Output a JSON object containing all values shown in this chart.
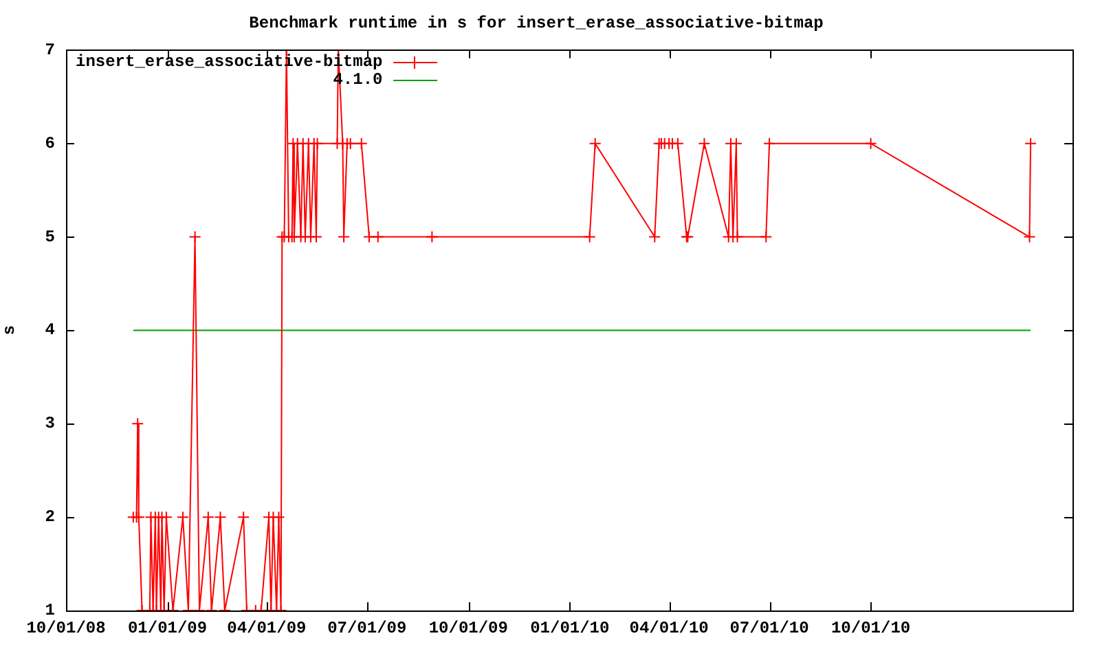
{
  "chart_data": {
    "type": "line",
    "title": "Benchmark runtime in s for insert_erase_associative-bitmap",
    "ylabel": "s",
    "xlim": [
      "2008-10-01",
      "2011-04-02"
    ],
    "xticks": [
      {
        "value": "2008-10-01",
        "label": "10/01/08"
      },
      {
        "value": "2009-01-01",
        "label": "01/01/09"
      },
      {
        "value": "2009-04-01",
        "label": "04/01/09"
      },
      {
        "value": "2009-07-01",
        "label": "07/01/09"
      },
      {
        "value": "2009-10-01",
        "label": "10/01/09"
      },
      {
        "value": "2010-01-01",
        "label": "01/01/10"
      },
      {
        "value": "2010-04-01",
        "label": "04/01/10"
      },
      {
        "value": "2010-07-01",
        "label": "07/01/10"
      },
      {
        "value": "2010-10-01",
        "label": "10/01/10"
      }
    ],
    "ylim": [
      1,
      7
    ],
    "yticks": [
      1,
      2,
      3,
      4,
      5,
      6,
      7
    ],
    "grid": false,
    "legend": "top left",
    "marker": "cross",
    "line_style": "solid",
    "series": [
      {
        "name": "insert_erase_associative-bitmap",
        "color": "#ff0000",
        "x": [
          "2008-12-01",
          "2008-12-04",
          "2008-12-05",
          "2008-12-06",
          "2008-12-09",
          "2008-12-16",
          "2008-12-17",
          "2008-12-19",
          "2008-12-21",
          "2008-12-22",
          "2008-12-24",
          "2008-12-26",
          "2008-12-27",
          "2008-12-29",
          "2008-12-31",
          "2009-01-06",
          "2009-01-15",
          "2009-01-20",
          "2009-01-26",
          "2009-01-30",
          "2009-02-07",
          "2009-02-10",
          "2009-02-18",
          "2009-02-22",
          "2009-03-11",
          "2009-03-14",
          "2009-03-22",
          "2009-03-27",
          "2009-04-03",
          "2009-04-05",
          "2009-04-07",
          "2009-04-10",
          "2009-04-12",
          "2009-04-14",
          "2009-04-15",
          "2009-04-17",
          "2009-04-19",
          "2009-04-21",
          "2009-04-24",
          "2009-04-25",
          "2009-04-26",
          "2009-04-29",
          "2009-05-02",
          "2009-05-04",
          "2009-05-06",
          "2009-05-09",
          "2009-05-11",
          "2009-05-14",
          "2009-05-16",
          "2009-05-17",
          "2009-06-04",
          "2009-06-05",
          "2009-06-09",
          "2009-06-10",
          "2009-06-13",
          "2009-06-16",
          "2009-06-26",
          "2009-07-03",
          "2009-07-11",
          "2009-08-29",
          "2010-01-19",
          "2010-01-24",
          "2010-03-19",
          "2010-03-23",
          "2010-03-25",
          "2010-03-28",
          "2010-04-01",
          "2010-04-04",
          "2010-04-09",
          "2010-04-17",
          "2010-04-18",
          "2010-05-03",
          "2010-05-25",
          "2010-05-27",
          "2010-05-29",
          "2010-06-01",
          "2010-06-02",
          "2010-06-28",
          "2010-07-01",
          "2010-10-01",
          "2011-02-22",
          "2011-02-23"
        ],
        "values": [
          2,
          2,
          3,
          2,
          1,
          1,
          2,
          1,
          2,
          1,
          2,
          1,
          2,
          1,
          2,
          1,
          2,
          1,
          5,
          1,
          2,
          1,
          2,
          1,
          2,
          1,
          1,
          1,
          2,
          1,
          2,
          1,
          2,
          1,
          5,
          5,
          7,
          5,
          5,
          6,
          5,
          6,
          5,
          6,
          5,
          6,
          5,
          6,
          5,
          6,
          6,
          7,
          6,
          5,
          6,
          6,
          6,
          5,
          5,
          5,
          5,
          6,
          5,
          6,
          6,
          6,
          6,
          6,
          6,
          5,
          5,
          6,
          5,
          6,
          5,
          6,
          5,
          5,
          6,
          6,
          5,
          6
        ]
      },
      {
        "name": "4.1.0",
        "color": "#00a000",
        "marker": "none",
        "x": [
          "2008-12-01",
          "2011-02-23"
        ],
        "values": [
          4,
          4
        ]
      }
    ]
  }
}
